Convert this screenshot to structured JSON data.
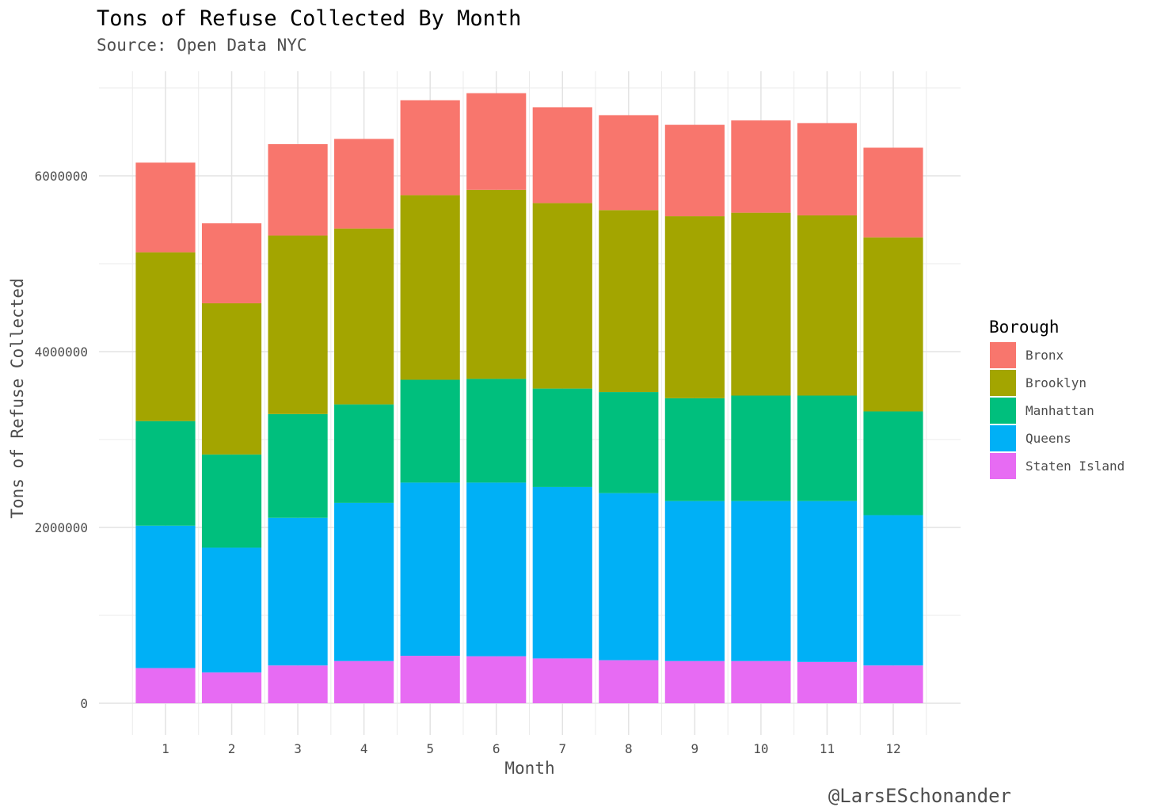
{
  "chart_data": {
    "type": "bar",
    "stacked": true,
    "title": "Tons of Refuse Collected By Month",
    "subtitle": "Source: Open Data NYC",
    "xlabel": "Month",
    "ylabel": "Tons of Refuse Collected",
    "caption": "@LarsESchonander",
    "categories": [
      "1",
      "2",
      "3",
      "4",
      "5",
      "6",
      "7",
      "8",
      "9",
      "10",
      "11",
      "12"
    ],
    "y_ticks": [
      0,
      2000000,
      4000000,
      6000000
    ],
    "y_tick_labels": [
      "0",
      "2000000",
      "4000000",
      "6000000"
    ],
    "ylim": [
      -330000,
      7000000
    ],
    "grid": true,
    "legend_title": "Borough",
    "legend_position": "right",
    "series": [
      {
        "name": "Staten Island",
        "color": "#E76BF3",
        "values": [
          400000,
          350000,
          430000,
          480000,
          540000,
          535000,
          510000,
          490000,
          480000,
          480000,
          470000,
          430000
        ]
      },
      {
        "name": "Queens",
        "color": "#00B0F6",
        "values": [
          1620000,
          1420000,
          1680000,
          1800000,
          1970000,
          1975000,
          1950000,
          1900000,
          1820000,
          1820000,
          1830000,
          1710000
        ]
      },
      {
        "name": "Manhattan",
        "color": "#00BF7D",
        "values": [
          1190000,
          1060000,
          1180000,
          1120000,
          1170000,
          1180000,
          1120000,
          1150000,
          1170000,
          1200000,
          1200000,
          1180000
        ]
      },
      {
        "name": "Brooklyn",
        "color": "#A3A500",
        "values": [
          1920000,
          1720000,
          2030000,
          2000000,
          2100000,
          2150000,
          2110000,
          2070000,
          2070000,
          2080000,
          2050000,
          1980000
        ]
      },
      {
        "name": "Bronx",
        "color": "#F8766D",
        "values": [
          1020000,
          910000,
          1040000,
          1020000,
          1080000,
          1100000,
          1090000,
          1080000,
          1040000,
          1050000,
          1050000,
          1020000
        ]
      }
    ],
    "legend_order": [
      "Bronx",
      "Brooklyn",
      "Manhattan",
      "Queens",
      "Staten Island"
    ]
  }
}
